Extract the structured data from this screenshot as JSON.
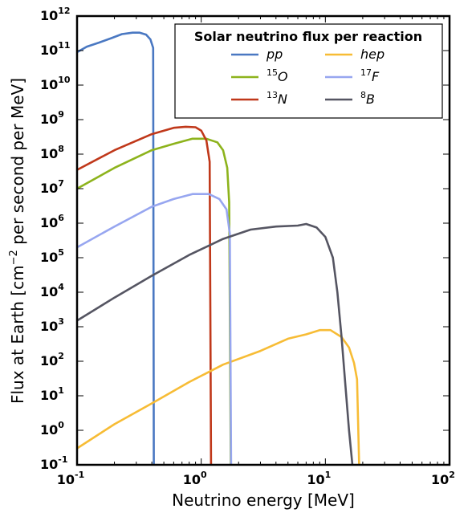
{
  "chart_data": {
    "type": "line",
    "xlabel": "Neutrino energy [MeV]",
    "ylabel_pre": "Flux at Earth [cm",
    "ylabel_sup": "−2",
    "ylabel_post": " per second per MeV]",
    "x_scale": "log",
    "y_scale": "log",
    "xlim": [
      0.1,
      100
    ],
    "ylim": [
      0.1,
      1000000000000
    ],
    "x_ticks": [
      {
        "base": "10",
        "exp": "-1"
      },
      {
        "base": "10",
        "exp": "0"
      },
      {
        "base": "10",
        "exp": "1"
      },
      {
        "base": "10",
        "exp": "2"
      }
    ],
    "y_ticks": [
      {
        "base": "10",
        "exp": "-1"
      },
      {
        "base": "10",
        "exp": "0"
      },
      {
        "base": "10",
        "exp": "1"
      },
      {
        "base": "10",
        "exp": "2"
      },
      {
        "base": "10",
        "exp": "3"
      },
      {
        "base": "10",
        "exp": "4"
      },
      {
        "base": "10",
        "exp": "5"
      },
      {
        "base": "10",
        "exp": "6"
      },
      {
        "base": "10",
        "exp": "7"
      },
      {
        "base": "10",
        "exp": "8"
      },
      {
        "base": "10",
        "exp": "9"
      },
      {
        "base": "10",
        "exp": "10"
      },
      {
        "base": "10",
        "exp": "11"
      },
      {
        "base": "10",
        "exp": "12"
      }
    ],
    "grid": false,
    "legend": {
      "title": "Solar neutrino flux per reaction",
      "placement": "top-right",
      "columns": 2
    },
    "series": [
      {
        "key": "pp",
        "label_sup": "",
        "label": "pp",
        "color": "#4a78c2",
        "points": [
          [
            0.1,
            90000000000.0
          ],
          [
            0.12,
            130000000000.0
          ],
          [
            0.15,
            170000000000.0
          ],
          [
            0.19,
            230000000000.0
          ],
          [
            0.23,
            300000000000.0
          ],
          [
            0.28,
            330000000000.0
          ],
          [
            0.32,
            330000000000.0
          ],
          [
            0.36,
            290000000000.0
          ],
          [
            0.39,
            210000000000.0
          ],
          [
            0.41,
            120000000000.0
          ],
          [
            0.415,
            0.1
          ]
        ]
      },
      {
        "key": "o15",
        "label_sup": "15",
        "label": "O",
        "color": "#8db31c",
        "points": [
          [
            0.1,
            10000000.0
          ],
          [
            0.2,
            40000000.0
          ],
          [
            0.4,
            130000000.0
          ],
          [
            0.6,
            200000000.0
          ],
          [
            0.85,
            280000000.0
          ],
          [
            1.1,
            280000000.0
          ],
          [
            1.35,
            220000000.0
          ],
          [
            1.5,
            130000000.0
          ],
          [
            1.62,
            40000000.0
          ],
          [
            1.68,
            4000000.0
          ],
          [
            1.73,
            0.1
          ]
        ]
      },
      {
        "key": "n13",
        "label_sup": "13",
        "label": "N",
        "color": "#c0381a",
        "points": [
          [
            0.1,
            35000000.0
          ],
          [
            0.2,
            130000000.0
          ],
          [
            0.4,
            380000000.0
          ],
          [
            0.6,
            580000000.0
          ],
          [
            0.75,
            620000000.0
          ],
          [
            0.9,
            600000000.0
          ],
          [
            1.0,
            480000000.0
          ],
          [
            1.1,
            250000000.0
          ],
          [
            1.17,
            60000000.0
          ],
          [
            1.2,
            0.1
          ]
        ]
      },
      {
        "key": "hep",
        "label_sup": "",
        "label": "hep",
        "color": "#f7bc35",
        "points": [
          [
            0.1,
            0.3
          ],
          [
            0.2,
            1.5
          ],
          [
            0.4,
            6.0
          ],
          [
            0.8,
            25.0
          ],
          [
            1.5,
            80.0
          ],
          [
            3.0,
            200.0
          ],
          [
            5.0,
            450.0
          ],
          [
            7.0,
            600.0
          ],
          [
            9.0,
            800.0
          ],
          [
            11.0,
            800.0
          ],
          [
            13.5,
            500.0
          ],
          [
            15.5,
            250.0
          ],
          [
            17.0,
            90.0
          ],
          [
            18.0,
            30.0
          ],
          [
            18.7,
            0.1
          ]
        ]
      },
      {
        "key": "f17",
        "label_sup": "17",
        "label": "F",
        "color": "#97a6f0",
        "points": [
          [
            0.1,
            200000.0
          ],
          [
            0.2,
            800000.0
          ],
          [
            0.4,
            3000000.0
          ],
          [
            0.6,
            5000000.0
          ],
          [
            0.85,
            7000000.0
          ],
          [
            1.15,
            7000000.0
          ],
          [
            1.4,
            5000000.0
          ],
          [
            1.6,
            2500000.0
          ],
          [
            1.7,
            500000.0
          ],
          [
            1.74,
            0.1
          ]
        ]
      },
      {
        "key": "b8",
        "label_sup": "8",
        "label": "B",
        "color": "#555562",
        "points": [
          [
            0.1,
            1500.0
          ],
          [
            0.2,
            7000.0
          ],
          [
            0.4,
            30000.0
          ],
          [
            0.8,
            120000.0
          ],
          [
            1.5,
            350000.0
          ],
          [
            2.5,
            650000.0
          ],
          [
            4.0,
            800000.0
          ],
          [
            6.0,
            850000.0
          ],
          [
            7.0,
            950000.0
          ],
          [
            8.5,
            750000.0
          ],
          [
            10.0,
            400000.0
          ],
          [
            11.5,
            100000.0
          ],
          [
            12.5,
            10000.0
          ],
          [
            13.5,
            500.0
          ],
          [
            14.5,
            20.0
          ],
          [
            15.5,
            1.0
          ],
          [
            16.5,
            0.1
          ]
        ]
      }
    ]
  }
}
